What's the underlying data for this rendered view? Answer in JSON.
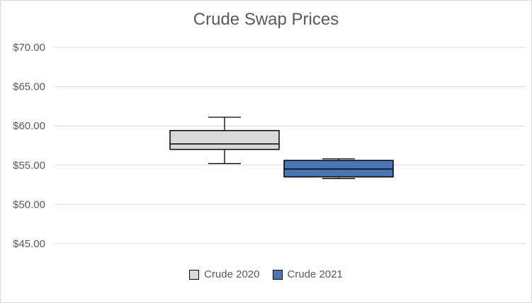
{
  "chart_data": {
    "type": "box",
    "title": "Crude Swap Prices",
    "xlabel": "",
    "ylabel": "",
    "ylim": [
      45,
      70
    ],
    "yticks": [
      70,
      65,
      60,
      55,
      50,
      45
    ],
    "ytick_labels": [
      "$70.00",
      "$65.00",
      "$60.00",
      "$55.00",
      "$50.00",
      "$45.00"
    ],
    "grid": true,
    "legend_position": "bottom",
    "series": [
      {
        "name": "Crude 2020",
        "color": "#d9d9d9",
        "whisker_low": 55.2,
        "q1": 57.0,
        "median": 57.7,
        "q3": 59.4,
        "whisker_high": 61.1
      },
      {
        "name": "Crude 2021",
        "color": "#4a76b5",
        "whisker_low": 53.3,
        "q1": 53.5,
        "median": 54.5,
        "q3": 55.6,
        "whisker_high": 55.8
      }
    ]
  }
}
